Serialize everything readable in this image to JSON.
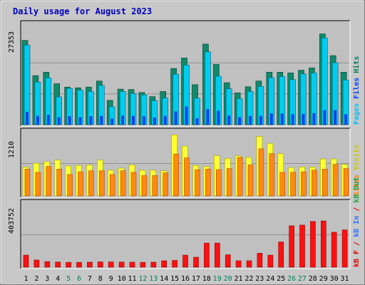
{
  "chart_data": {
    "type": "bar",
    "title": "Daily usage for August 2023",
    "categories": [
      "1",
      "2",
      "3",
      "4",
      "5",
      "6",
      "7",
      "8",
      "9",
      "10",
      "11",
      "12",
      "13",
      "14",
      "15",
      "16",
      "17",
      "18",
      "19",
      "20",
      "21",
      "22",
      "23",
      "24",
      "25",
      "26",
      "27",
      "28",
      "29",
      "30",
      "31"
    ],
    "weekend_days": [
      "5",
      "6",
      "12",
      "13",
      "19",
      "20",
      "26",
      "27"
    ],
    "panels": [
      {
        "name": "hits-files-pages",
        "max_label": "27353",
        "ymax": 27353,
        "legend": [
          {
            "text": "Pages",
            "color": "#00c0ff"
          },
          {
            "text": "Files",
            "color": "#0040ff"
          },
          {
            "text": "Hits",
            "color": "#00805c"
          }
        ],
        "series": [
          {
            "name": "Hits",
            "color": "#0f8a6a",
            "values": [
              24900,
              14500,
              15500,
              12100,
              11100,
              10900,
              11100,
              12900,
              7200,
              10500,
              10400,
              9500,
              8300,
              9800,
              16600,
              19700,
              11800,
              23800,
              17800,
              12400,
              9400,
              11200,
              12900,
              15500,
              15500,
              15300,
              16100,
              16800,
              26800,
              20400,
              15500
            ]
          },
          {
            "name": "Files",
            "color": "#00ccee",
            "values": [
              23500,
              12600,
              13800,
              8200,
              10700,
              10200,
              9800,
              11600,
              5300,
              9800,
              9200,
              8800,
              7100,
              7900,
              14900,
              17600,
              7800,
              21500,
              14300,
              10600,
              7700,
              9800,
              11300,
              13900,
              14200,
              13300,
              15000,
              15300,
              25600,
              18300,
              13200
            ]
          },
          {
            "name": "Pages",
            "color": "#0044ee",
            "values": [
              3800,
              2600,
              2900,
              2200,
              2500,
              2200,
              2500,
              2600,
              1800,
              2700,
              2600,
              2500,
              2100,
              2600,
              3900,
              5400,
              1900,
              4600,
              4100,
              2700,
              2200,
              2600,
              2600,
              3300,
              3300,
              3100,
              3200,
              3400,
              4300,
              4300,
              3100
            ]
          }
        ]
      },
      {
        "name": "visits-sites",
        "max_label": "1210",
        "ymax": 1210,
        "legend": [
          {
            "text": "Sites",
            "color": "#ff8000"
          },
          {
            "text": "Visits",
            "color": "#c8c800"
          }
        ],
        "series": [
          {
            "name": "Visits",
            "color": "#ffff33",
            "values": [
              540,
              610,
              640,
              670,
              560,
              570,
              580,
              670,
              480,
              520,
              580,
              480,
              480,
              470,
              1140,
              930,
              570,
              550,
              750,
              700,
              750,
              720,
              1110,
              980,
              790,
              530,
              540,
              540,
              690,
              690,
              590
            ]
          },
          {
            "name": "Sites",
            "color": "#ff8a10",
            "values": [
              500,
              440,
              550,
              500,
              400,
              450,
              470,
              470,
              400,
              470,
              440,
              380,
              380,
              430,
              780,
              710,
              490,
              500,
              490,
              510,
              720,
              580,
              880,
              790,
              440,
              440,
              450,
              480,
              500,
              590,
              510
            ]
          }
        ]
      },
      {
        "name": "kbytes",
        "max_label": "403752",
        "ymax": 403752,
        "legend": [
          {
            "text": "kB F",
            "color": "#e00000"
          },
          {
            "text": "/",
            "color": "#e00000"
          },
          {
            "text": "kB In",
            "color": "#3070ff"
          },
          {
            "text": "/",
            "color": "#e00000"
          },
          {
            "text": "kB Out",
            "color": "#20a040"
          }
        ],
        "series": [
          {
            "name": "kB F",
            "color": "#ff1010",
            "values": [
              75000,
              45000,
              35000,
              32000,
              30000,
              30000,
              31000,
              33000,
              33000,
              32000,
              31000,
              30000,
              31000,
              40000,
              42000,
              75000,
              62000,
              150000,
              150000,
              77000,
              40000,
              40000,
              87000,
              75000,
              157000,
              258000,
              262000,
              285000,
              288000,
              218000,
              232000
            ]
          }
        ]
      }
    ]
  }
}
